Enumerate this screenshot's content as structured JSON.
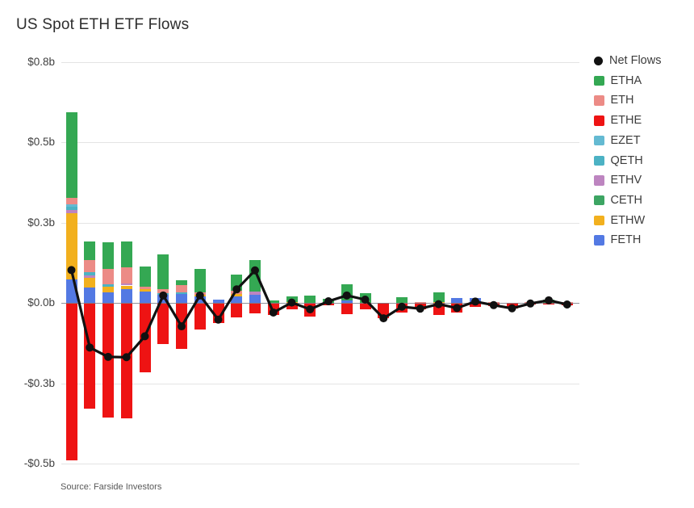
{
  "chart_data": {
    "type": "bar",
    "subtype": "stacked-bars-with-net-line",
    "title": "US Spot ETH ETF Flows",
    "source": "Source: Farside Investors",
    "unit": "billions of USD",
    "grid": true,
    "legend_position": "right",
    "y_axis": {
      "tick_labels": [
        "$0.8b",
        "$0.5b",
        "$0.3b",
        "$0.0b",
        "-$0.3b",
        "-$0.5b"
      ],
      "tick_values": [
        0.75,
        0.5,
        0.25,
        0,
        -0.25,
        -0.5
      ],
      "range": [
        -0.55,
        0.8
      ]
    },
    "x_axis": {
      "tick_labels": [],
      "note": "28 consecutive trading periods, labels not shown"
    },
    "legend": [
      {
        "label": "Net Flows",
        "color": "#111111",
        "marker": "dot"
      },
      {
        "label": "ETHA",
        "color": "#34a853",
        "marker": "square"
      },
      {
        "label": "ETH",
        "color": "#ec8b86",
        "marker": "square"
      },
      {
        "label": "ETHE",
        "color": "#ee1313",
        "marker": "square"
      },
      {
        "label": "EZET",
        "color": "#64bad2",
        "marker": "square"
      },
      {
        "label": "QETH",
        "color": "#4cb2c4",
        "marker": "square"
      },
      {
        "label": "ETHV",
        "color": "#bd85c0",
        "marker": "square"
      },
      {
        "label": "CETH",
        "color": "#3da563",
        "marker": "square"
      },
      {
        "label": "ETHW",
        "color": "#f2b01e",
        "marker": "square"
      },
      {
        "label": "FETH",
        "color": "#5379e3",
        "marker": "square"
      }
    ],
    "stack_order_bottom_to_top": [
      "FETH",
      "ETHW",
      "CETH",
      "ETHV",
      "QETH",
      "EZET",
      "ETH",
      "ETHA"
    ],
    "negative_series": "ETHE",
    "bars": [
      {
        "FETH": 0.073,
        "ETHW": 0.207,
        "ETHV": 0.01,
        "QETH": 0.009,
        "EZET": 0.008,
        "ETH": 0.02,
        "ETHA": 0.265,
        "ETHE": -0.49
      },
      {
        "FETH": 0.048,
        "ETHW": 0.03,
        "ETHV": 0.008,
        "QETH": 0.01,
        "ETH": 0.036,
        "ETHA": 0.058,
        "ETHE": -0.329
      },
      {
        "FETH": 0.033,
        "ETHW": 0.017,
        "QETH": 0.008,
        "ETH": 0.048,
        "ETHA": 0.083,
        "ETHE": -0.357
      },
      {
        "FETH": 0.043,
        "ETHW": 0.011,
        "ETHV": 0.006,
        "ETH": 0.051,
        "ETHA": 0.08,
        "ETHE": -0.36
      },
      {
        "FETH": 0.035,
        "ETHW": 0.008,
        "ETH": 0.007,
        "ETHA": 0.063,
        "ETHE": -0.217
      },
      {
        "FETH": 0.025,
        "QETH": 0.005,
        "ETH": 0.012,
        "ETHA": 0.109,
        "ETHE": -0.128
      },
      {
        "FETH": 0.027,
        "QETH": 0.005,
        "ETH": 0.023,
        "ETHA": 0.015,
        "ETHE": -0.143
      },
      {
        "FETH": 0.019,
        "ETHW": 0.006,
        "ETH": 0.008,
        "ETHA": 0.073,
        "ETHE": -0.083
      },
      {
        "FETH": 0.01,
        "ETHE": -0.062
      },
      {
        "FETH": 0.02,
        "ETHW": 0.007,
        "ETH": 0.011,
        "ETHA": 0.05,
        "ETHE": -0.046
      },
      {
        "FETH": 0.026,
        "ETHV": 0.008,
        "ETHA": 0.1,
        "ETHE": -0.033
      },
      {
        "ETHA": 0.008,
        "ETHE": -0.038
      },
      {
        "ETHW": 0.003,
        "ETHA": 0.018,
        "ETHE": -0.02
      },
      {
        "ETHA": 0.023,
        "ETHE": -0.043
      },
      {
        "ETHA": 0.012,
        "ETHE": -0.007
      },
      {
        "FETH": 0.008,
        "ETHA": 0.05,
        "ETHE": -0.035
      },
      {
        "ETHA": 0.03,
        "ETHE": -0.02
      },
      {
        "ETHE": -0.048
      },
      {
        "ETHA": 0.018,
        "ETHE": -0.03
      },
      {
        "ETH": 0.002,
        "ETHE": -0.02
      },
      {
        "ETHW": 0.002,
        "ETHA": 0.031,
        "ETHE": -0.037
      },
      {
        "FETH": 0.014,
        "ETHE": -0.03
      },
      {
        "FETH": 0.016,
        "ETHE": -0.012
      },
      {
        "ETH": 0.003,
        "ETHE": -0.01
      },
      {
        "ETHE": -0.017
      },
      {
        "ETH": 0.003,
        "ETHE": -0.005
      },
      {
        "ETHA": 0.01,
        "ETHE": -0.002
      },
      {
        "ETH": 0.002,
        "ETHE": -0.007
      }
    ],
    "net_flows": [
      0.102,
      -0.139,
      -0.168,
      -0.169,
      -0.104,
      0.023,
      -0.073,
      0.023,
      -0.052,
      0.042,
      0.101,
      -0.03,
      0.001,
      -0.02,
      0.005,
      0.023,
      0.01,
      -0.048,
      -0.012,
      -0.018,
      -0.004,
      -0.016,
      0.004,
      -0.007,
      -0.017,
      -0.002,
      0.008,
      -0.005
    ]
  }
}
